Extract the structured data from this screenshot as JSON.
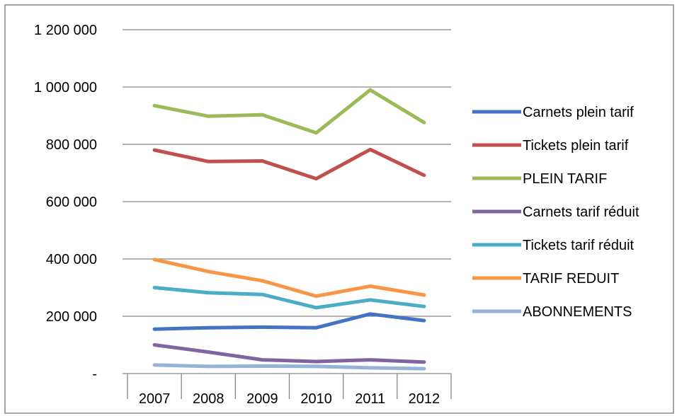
{
  "chart_data": {
    "type": "line",
    "title": "",
    "xlabel": "",
    "ylabel": "",
    "categories": [
      "2007",
      "2008",
      "2009",
      "2010",
      "2011",
      "2012"
    ],
    "ylim": [
      0,
      1200000
    ],
    "yticks": [
      0,
      200000,
      400000,
      600000,
      800000,
      1000000,
      1200000
    ],
    "ytick_labels": [
      "-",
      "200 000",
      "400 000",
      "600 000",
      "800 000",
      "1 000 000",
      "1 200 000"
    ],
    "grid": "horizontal",
    "legend_position": "right",
    "series": [
      {
        "name": "Carnets plein tarif",
        "color": "#4472C4",
        "values": [
          155000,
          160000,
          162000,
          160000,
          208000,
          185000
        ]
      },
      {
        "name": "Tickets plein tarif",
        "color": "#C0504D",
        "values": [
          780000,
          740000,
          742000,
          680000,
          782000,
          692000
        ]
      },
      {
        "name": "PLEIN TARIF",
        "color": "#9BBB59",
        "values": [
          935000,
          898000,
          903000,
          840000,
          990000,
          876000
        ]
      },
      {
        "name": "Carnets tarif réduit",
        "color": "#8064A2",
        "values": [
          100000,
          75000,
          48000,
          42000,
          48000,
          40000
        ]
      },
      {
        "name": "Tickets tarif réduit",
        "color": "#4BACC6",
        "values": [
          300000,
          282000,
          276000,
          230000,
          257000,
          234000
        ]
      },
      {
        "name": "TARIF REDUIT",
        "color": "#F79646",
        "values": [
          398000,
          356000,
          324000,
          270000,
          305000,
          274000
        ]
      },
      {
        "name": "ABONNEMENTS",
        "color": "#95B3D7",
        "values": [
          30000,
          25000,
          26000,
          25000,
          20000,
          17000
        ]
      }
    ]
  }
}
